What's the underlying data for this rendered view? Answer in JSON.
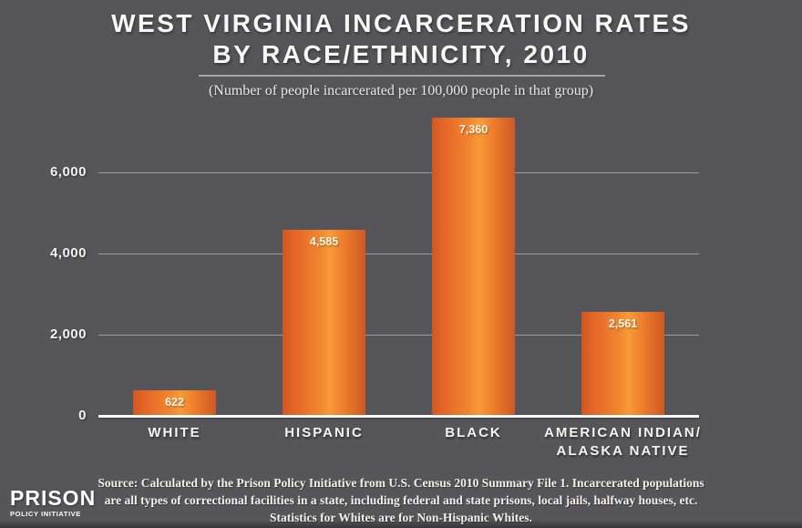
{
  "title": {
    "line1": "WEST VIRGINIA INCARCERATION RATES",
    "line2": "BY RACE/ETHNICITY, 2010"
  },
  "subtitle": "(Number of people incarcerated per 100,000 people in that group)",
  "chart_data": {
    "type": "bar",
    "title": "WEST VIRGINIA INCARCERATION RATES BY RACE/ETHNICITY, 2010",
    "subtitle": "(Number of people incarcerated per 100,000 people in that group)",
    "categories": [
      "WHITE",
      "HISPANIC",
      "BLACK",
      "AMERICAN INDIAN/ ALASKA NATIVE"
    ],
    "category_lines": [
      [
        "WHITE"
      ],
      [
        "HISPANIC"
      ],
      [
        "BLACK"
      ],
      [
        "AMERICAN INDIAN/",
        "ALASKA NATIVE"
      ]
    ],
    "values": [
      622,
      4585,
      7360,
      2561
    ],
    "value_labels": [
      "622",
      "4,585",
      "7,360",
      "2,561"
    ],
    "xlabel": "",
    "ylabel": "",
    "ylim": [
      0,
      7400
    ],
    "yticks": [
      {
        "value": 0,
        "label": "0"
      },
      {
        "value": 2000,
        "label": "2,000"
      },
      {
        "value": 4000,
        "label": "4,000"
      },
      {
        "value": 6000,
        "label": "6,000"
      }
    ],
    "grid": "horizontal-lines",
    "legend": "none"
  },
  "footer": {
    "source_lines": [
      "Source: Calculated by the Prison Policy Initiative from U.S. Census 2010 Summary File 1. Incarcerated populations",
      "are all types of correctional facilities in a state, including federal and state prisons, local jails, halfway houses, etc.",
      "Statistics for Whites are for Non-Hispanic Whites."
    ]
  },
  "logo": {
    "line1": "PRISON",
    "line2": "POLICY INITIATIVE"
  },
  "colors": {
    "background": "#565559",
    "grid_line": "#9b9a9d",
    "axis_line": "#fbfbfa",
    "title_text": "#f7f7f5",
    "underline": "#a6a6a8",
    "bar_edge": "#cf5822",
    "bar_mid": "#f1862f",
    "bar_highlight": "#f89b36"
  }
}
